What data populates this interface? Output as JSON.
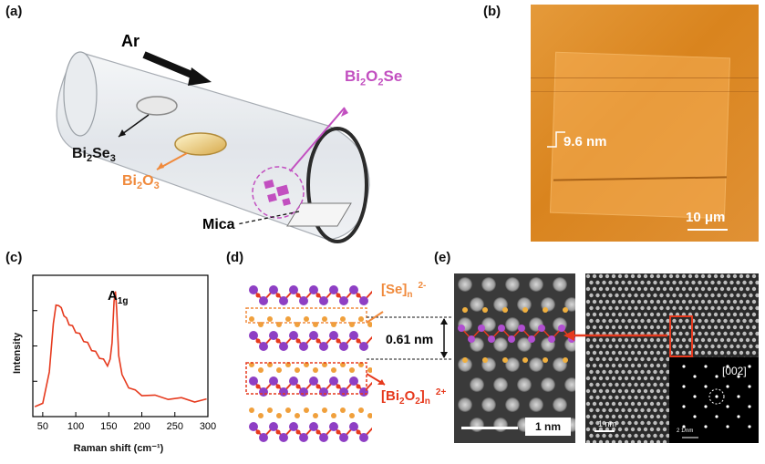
{
  "panels": {
    "a": {
      "label": "(a)",
      "gas": "Ar",
      "sources": [
        "Bi",
        "Se",
        "3"
      ],
      "labels": {
        "product": [
          "Bi",
          "2",
          "O",
          "2",
          "Se"
        ],
        "bi2se3": [
          "Bi",
          "2",
          "Se",
          "3"
        ],
        "bi2o3": [
          "Bi",
          "2",
          "O",
          "3"
        ],
        "mica": "Mica"
      },
      "colors": {
        "product": "#c24fc0",
        "bi2o3": "#f08a3c"
      }
    },
    "b": {
      "label": "(b)",
      "height": "9.6 nm",
      "scale": "10 μm"
    },
    "c": {
      "label": "(c)",
      "peak_label": "A",
      "peak_sub": "1g"
    },
    "d": {
      "label": "(d)",
      "layer1": "[Se]",
      "layer1_sub": "n",
      "layer1_sup": "2-",
      "spacing": "0.61 nm",
      "layer2": "[Bi",
      "layer2_sub1": "2",
      "layer2_mid": "O",
      "layer2_sub2": "2",
      "layer2_end": "]",
      "layer2_sub3": "n",
      "layer2_sup": "2+"
    },
    "e": {
      "label": "(e)",
      "scale_left": "1 nm",
      "fft_label": "[002]",
      "scale_right": "1 nm",
      "fft_scale": "2 1/nm"
    }
  },
  "chart_data": {
    "type": "line",
    "title": "",
    "xlabel": "Raman shift (cm⁻¹)",
    "ylabel": "Intensity",
    "xlim": [
      35,
      300
    ],
    "xticks": [
      50,
      100,
      150,
      200,
      250,
      300
    ],
    "x": [
      38,
      50,
      60,
      66,
      70,
      74,
      78,
      82,
      86,
      90,
      95,
      100,
      106,
      112,
      118,
      124,
      130,
      136,
      142,
      148,
      152,
      155,
      158,
      160,
      162,
      165,
      170,
      180,
      190,
      200,
      220,
      240,
      260,
      280,
      298
    ],
    "y": [
      0.03,
      0.08,
      0.3,
      0.7,
      0.82,
      0.84,
      0.8,
      0.76,
      0.72,
      0.69,
      0.66,
      0.63,
      0.6,
      0.56,
      0.53,
      0.49,
      0.46,
      0.43,
      0.4,
      0.37,
      0.4,
      0.55,
      0.85,
      0.95,
      0.78,
      0.45,
      0.28,
      0.2,
      0.16,
      0.14,
      0.12,
      0.11,
      0.1,
      0.09,
      0.09
    ],
    "annotation": "A1g",
    "line_color": "#e63a1e",
    "grid": false
  }
}
